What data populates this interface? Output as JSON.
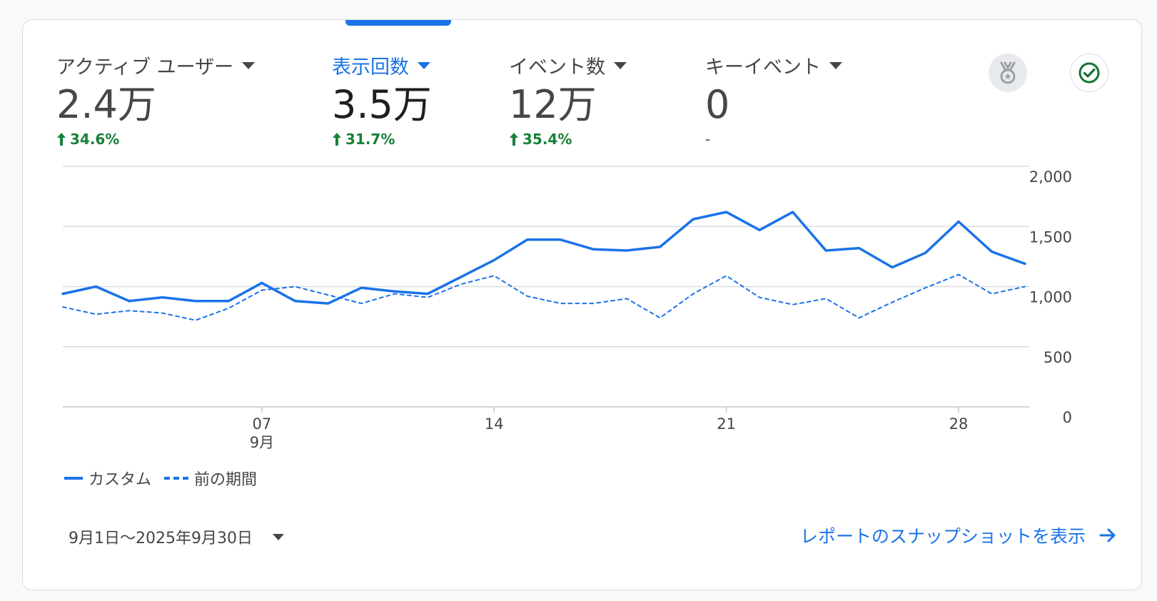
{
  "metrics": [
    {
      "label": "アクティブ ユーザー",
      "value": "2.4万",
      "change": "34.6%",
      "trend": "up",
      "active": false
    },
    {
      "label": "表示回数",
      "value": "3.5万",
      "change": "31.7%",
      "trend": "up",
      "active": true
    },
    {
      "label": "イベント数",
      "value": "12万",
      "change": "35.4%",
      "trend": "up",
      "active": false
    },
    {
      "label": "キーイベント",
      "value": "0",
      "change": "-",
      "trend": "none",
      "active": false
    }
  ],
  "icons": {
    "badge": "medal-icon",
    "status": "check-circle-icon"
  },
  "colors": {
    "accent": "#1a73e8",
    "positive": "#188038",
    "check": "#137333"
  },
  "chart_data": {
    "type": "line",
    "x": [
      1,
      2,
      3,
      4,
      5,
      6,
      7,
      8,
      9,
      10,
      11,
      12,
      13,
      14,
      15,
      16,
      17,
      18,
      19,
      20,
      21,
      22,
      23,
      24,
      25,
      26,
      27,
      28,
      29,
      30
    ],
    "x_ticks": [
      {
        "day": 7,
        "label": "07",
        "sublabel": "9月"
      },
      {
        "day": 14,
        "label": "14"
      },
      {
        "day": 21,
        "label": "21"
      },
      {
        "day": 28,
        "label": "28"
      }
    ],
    "ylim": [
      0,
      2000
    ],
    "y_ticks": [
      "0",
      "500",
      "1,000",
      "1,500",
      "2,000"
    ],
    "grid": true,
    "legend_position": "bottom-left",
    "series": [
      {
        "name": "カスタム",
        "style": "solid",
        "values": [
          940,
          1000,
          880,
          910,
          880,
          880,
          1030,
          880,
          860,
          990,
          960,
          940,
          1080,
          1220,
          1390,
          1390,
          1310,
          1300,
          1330,
          1560,
          1620,
          1470,
          1620,
          1300,
          1320,
          1160,
          1280,
          1540,
          1290,
          1190
        ]
      },
      {
        "name": "前の期間",
        "style": "dashed",
        "values": [
          830,
          770,
          800,
          780,
          720,
          820,
          970,
          1000,
          930,
          860,
          940,
          910,
          1020,
          1090,
          920,
          860,
          860,
          900,
          740,
          940,
          1090,
          910,
          850,
          900,
          740,
          870,
          990,
          1100,
          940,
          1000
        ]
      }
    ]
  },
  "footer": {
    "date_range": "9月1日～2025年9月30日",
    "snapshot_link": "レポートのスナップショットを表示"
  }
}
